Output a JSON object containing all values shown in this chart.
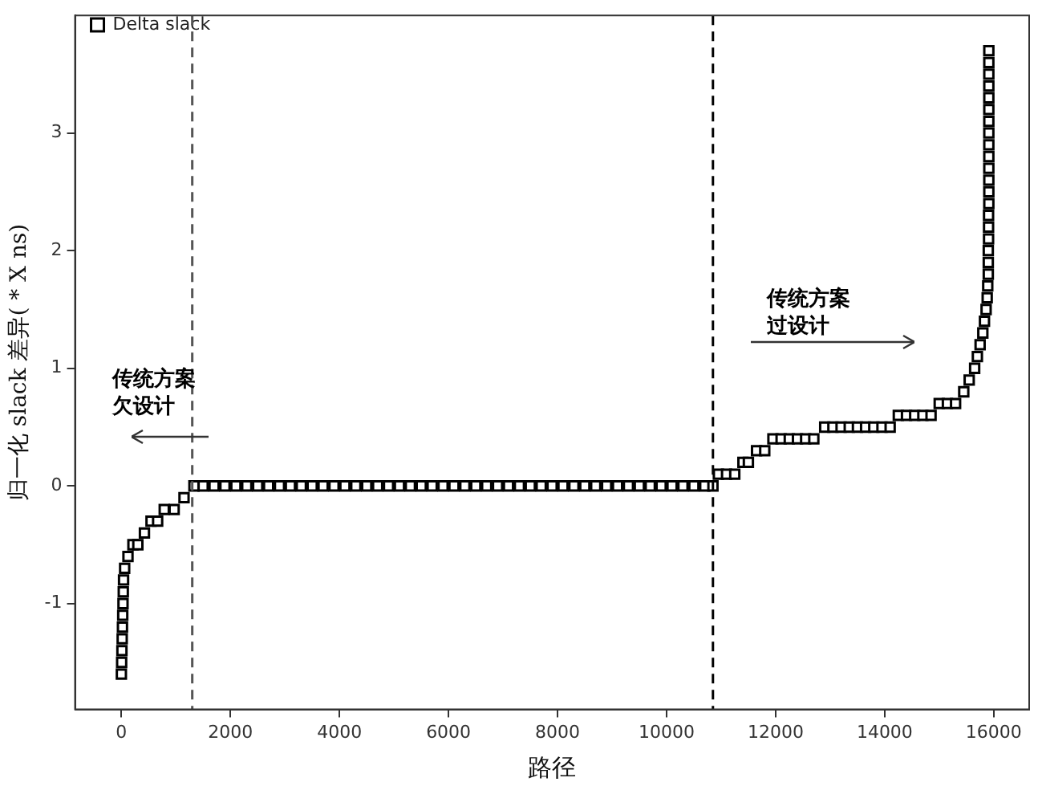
{
  "chart_data": {
    "type": "scatter",
    "xlabel": "路径",
    "ylabel": "归一化 slack 差异( * X ns)",
    "series": [
      {
        "name": "Delta slack",
        "color": "#000000",
        "x": [
          0,
          5,
          10,
          15,
          20,
          25,
          30,
          35,
          40,
          60,
          121,
          212,
          302,
          423,
          544,
          665,
          786,
          968,
          1149,
          1331,
          1500,
          1700,
          1900,
          2100,
          2300,
          2500,
          2700,
          2900,
          3100,
          3300,
          3500,
          3700,
          3900,
          4100,
          4300,
          4500,
          4700,
          4900,
          5100,
          5300,
          5500,
          5700,
          5900,
          6100,
          6300,
          6500,
          6700,
          6900,
          7100,
          7300,
          7500,
          7700,
          7900,
          8100,
          8300,
          8500,
          8700,
          8900,
          9100,
          9300,
          9500,
          9700,
          9900,
          10100,
          10300,
          10500,
          10700,
          10850,
          10950,
          11100,
          11250,
          11400,
          11500,
          11650,
          11800,
          11950,
          12100,
          12250,
          12400,
          12550,
          12700,
          12900,
          13050,
          13200,
          13350,
          13500,
          13650,
          13800,
          13950,
          14100,
          14250,
          14400,
          14550,
          14700,
          14850,
          15000,
          15150,
          15300,
          15450,
          15550,
          15650,
          15700,
          15750,
          15800,
          15830,
          15860,
          15880,
          15890,
          15900,
          15900,
          15900,
          15905,
          15905,
          15905,
          15910,
          15910,
          15910,
          15910,
          15910,
          15910,
          15910,
          15910,
          15910,
          15910,
          15910,
          15910,
          15910,
          15910
        ],
        "values": [
          -1.6,
          -1.5,
          -1.4,
          -1.3,
          -1.2,
          -1.1,
          -1.0,
          -0.9,
          -0.8,
          -0.7,
          -0.6,
          -0.5,
          -0.5,
          -0.4,
          -0.3,
          -0.3,
          -0.2,
          -0.2,
          -0.1,
          0,
          0,
          0,
          0,
          0,
          0,
          0,
          0,
          0,
          0,
          0,
          0,
          0,
          0,
          0,
          0,
          0,
          0,
          0,
          0,
          0,
          0,
          0,
          0,
          0,
          0,
          0,
          0,
          0,
          0,
          0,
          0,
          0,
          0,
          0,
          0,
          0,
          0,
          0,
          0,
          0,
          0,
          0,
          0,
          0,
          0,
          0,
          0,
          0,
          0.1,
          0.1,
          0.1,
          0.2,
          0.2,
          0.3,
          0.3,
          0.4,
          0.4,
          0.4,
          0.4,
          0.4,
          0.4,
          0.5,
          0.5,
          0.5,
          0.5,
          0.5,
          0.5,
          0.5,
          0.5,
          0.5,
          0.6,
          0.6,
          0.6,
          0.6,
          0.6,
          0.7,
          0.7,
          0.7,
          0.8,
          0.9,
          1.0,
          1.1,
          1.2,
          1.3,
          1.4,
          1.5,
          1.6,
          1.7,
          1.8,
          1.9,
          2.0,
          2.1,
          2.2,
          2.3,
          2.4,
          2.5,
          2.6,
          2.7,
          2.8,
          2.9,
          3.0,
          3.1,
          3.2,
          3.3,
          3.4,
          3.5,
          3.6,
          3.7
        ]
      }
    ],
    "xlim": [
      -850,
      16650
    ],
    "ylim": [
      -1.9,
      4.0
    ],
    "xticks": [
      0,
      2000,
      4000,
      6000,
      8000,
      10000,
      12000,
      14000,
      16000
    ],
    "yticks": [
      -1,
      0,
      1,
      2,
      3
    ],
    "ref_lines": [
      {
        "axis": "x",
        "value": 1300,
        "line_style": "dashed",
        "color": "#555555"
      },
      {
        "axis": "x",
        "value": 10850,
        "line_style": "dashed",
        "color": "#000000"
      }
    ],
    "annotations": [
      "传统方案欠设计",
      "传统方案过设计"
    ],
    "grid": false,
    "legend": "top left",
    "marker": "square"
  }
}
